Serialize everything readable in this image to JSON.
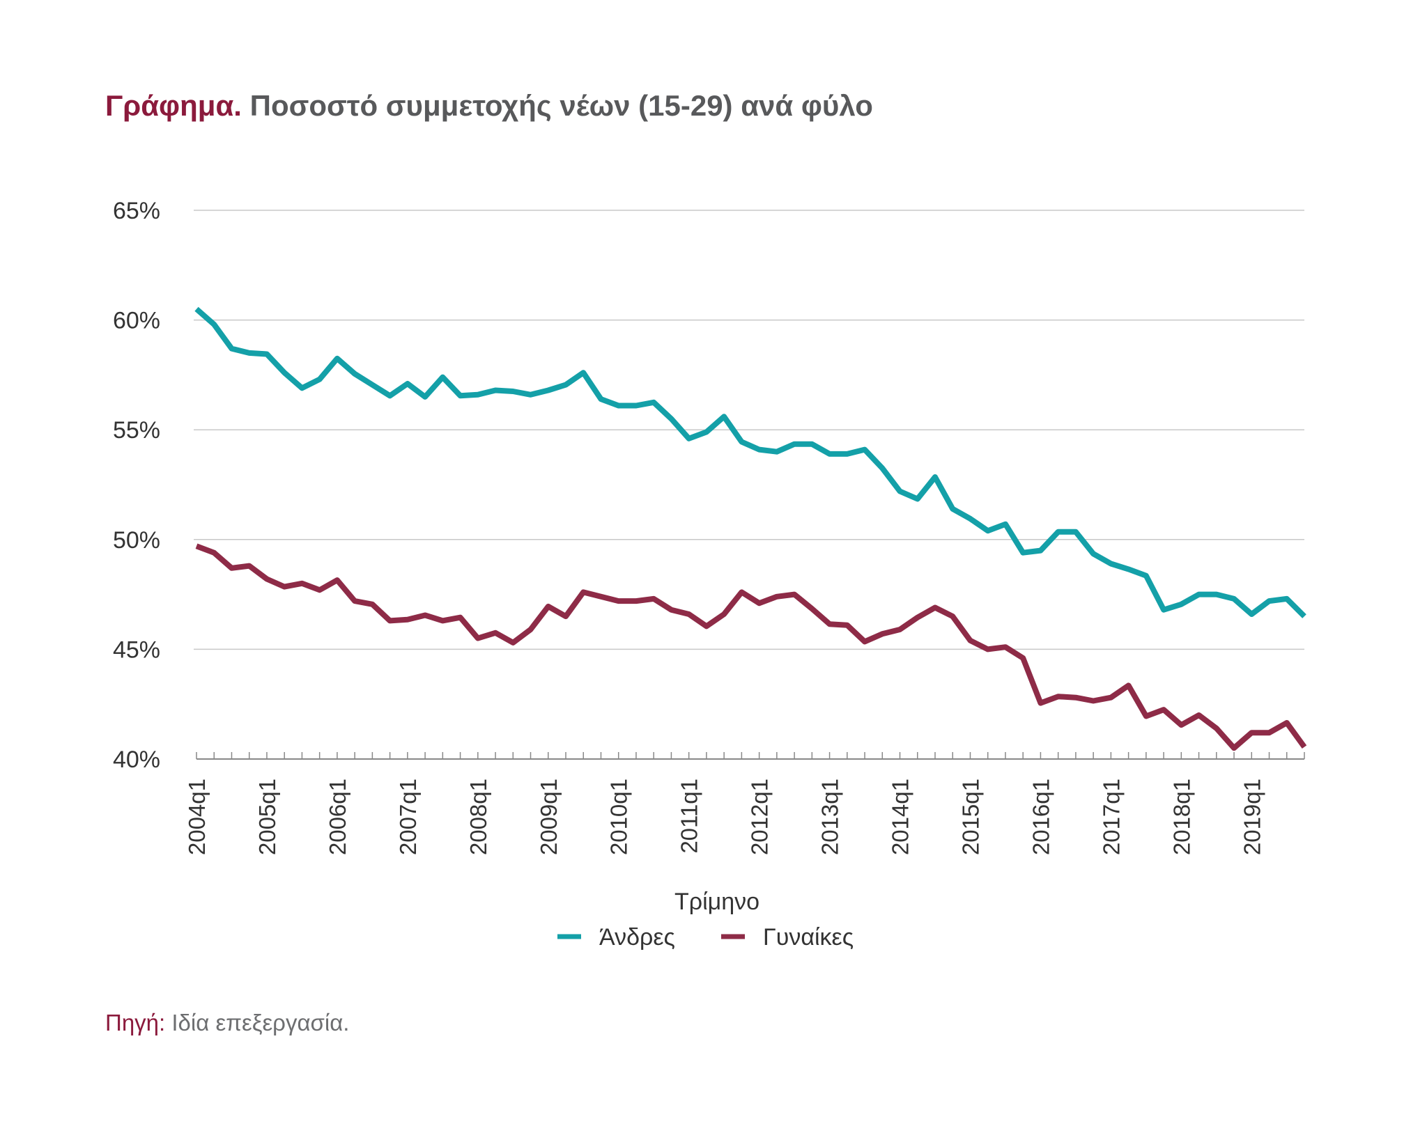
{
  "title": {
    "lead": "Γράφημα.",
    "text": "Ποσοστό συμμετοχής νέων (15-29) ανά φύλο"
  },
  "source": {
    "lead": "Πηγή:",
    "text": "Ιδία επεξεργασία."
  },
  "colors": {
    "men": "#14a0a8",
    "women": "#8e2b47",
    "title_accent": "#8b1a3c",
    "grid": "#c8c8c8"
  },
  "chart_data": {
    "type": "line",
    "title": "Γράφημα. Ποσοστό συμμετοχής νέων (15-29) ανά φύλο",
    "xlabel": "Τρίμηνο",
    "ylabel": "",
    "ylim": [
      40,
      65
    ],
    "yticks": [
      "40%",
      "45%",
      "50%",
      "55%",
      "60%",
      "65%"
    ],
    "ytick_values": [
      40,
      45,
      50,
      55,
      60,
      65
    ],
    "xticks": [
      "2004q1",
      "2005q1",
      "2006q1",
      "2007q1",
      "2008q1",
      "2009q1",
      "2010q1",
      "2011q1",
      "2012q1",
      "2013q1",
      "2014q1",
      "2015q1",
      "2016q1",
      "2017q1",
      "2018q1",
      "2019q1"
    ],
    "x_start": "2004q1",
    "x_end": "2019q4",
    "grid": true,
    "legend_position": "bottom",
    "series": [
      {
        "name": "Άνδρες",
        "color": "#14a0a8",
        "values": [
          60.5,
          59.8,
          58.7,
          58.5,
          58.45,
          57.6,
          56.9,
          57.3,
          58.25,
          57.55,
          57.05,
          56.55,
          57.1,
          56.5,
          57.4,
          56.55,
          56.6,
          56.8,
          56.75,
          56.6,
          56.8,
          57.05,
          57.6,
          56.4,
          56.1,
          56.1,
          56.25,
          55.5,
          54.6,
          54.9,
          55.6,
          54.45,
          54.1,
          54.0,
          54.35,
          54.35,
          53.9,
          53.9,
          54.1,
          53.25,
          52.2,
          51.85,
          52.85,
          51.4,
          50.95,
          50.4,
          50.7,
          49.4,
          49.5,
          50.35,
          50.35,
          49.35,
          48.9,
          48.65,
          48.35,
          46.8,
          47.05,
          47.5,
          47.5,
          47.3,
          46.6,
          47.2,
          47.3,
          46.5
        ]
      },
      {
        "name": "Γυναίκες",
        "color": "#8e2b47",
        "values": [
          49.7,
          49.4,
          48.7,
          48.8,
          48.2,
          47.85,
          48.0,
          47.7,
          48.15,
          47.2,
          47.05,
          46.3,
          46.35,
          46.55,
          46.3,
          46.45,
          45.5,
          45.75,
          45.3,
          45.9,
          46.95,
          46.5,
          47.6,
          47.4,
          47.2,
          47.2,
          47.3,
          46.8,
          46.6,
          46.05,
          46.6,
          47.6,
          47.1,
          47.4,
          47.5,
          46.85,
          46.15,
          46.1,
          45.35,
          45.7,
          45.9,
          46.45,
          46.9,
          46.5,
          45.4,
          45.0,
          45.1,
          44.6,
          42.55,
          42.85,
          42.8,
          42.65,
          42.8,
          43.35,
          41.95,
          42.25,
          41.55,
          42.0,
          41.4,
          40.5,
          41.2,
          41.2,
          41.65,
          40.55
        ]
      }
    ]
  }
}
